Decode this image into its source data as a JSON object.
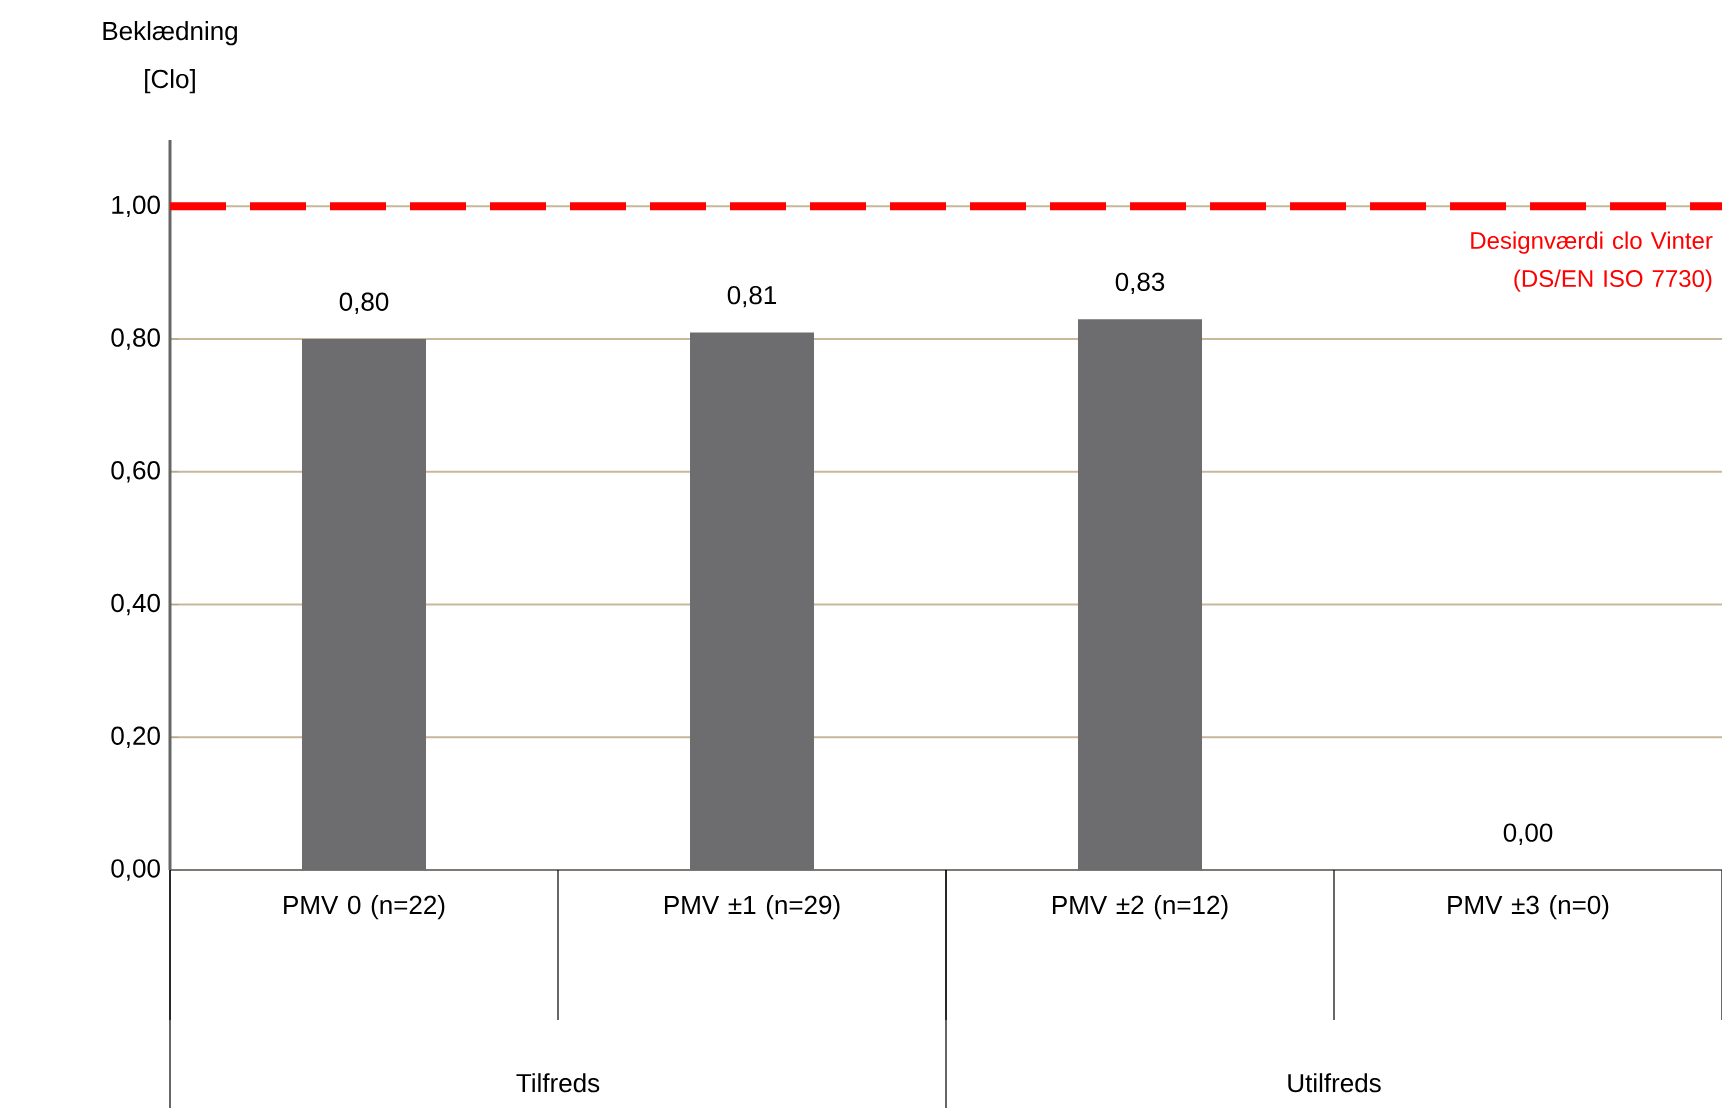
{
  "chart_data": {
    "type": "bar",
    "ylabel": "Beklædning [Clo]",
    "categories": [
      "PMV 0 (n=22)",
      "PMV ±1 (n=29)",
      "PMV ±2 (n=12)",
      "PMV ±3 (n=0)"
    ],
    "values": [
      0.8,
      0.81,
      0.83,
      0.0
    ],
    "color": "#6d6d70",
    "value_labels": [
      "0,80",
      "0,81",
      "0,83",
      "0,00"
    ],
    "ylim": [
      0,
      1.1
    ],
    "yticks": [
      {
        "value": 0,
        "label": "0,00"
      },
      {
        "value": 0.2,
        "label": "0,20"
      },
      {
        "value": 0.4,
        "label": "0,40"
      },
      {
        "value": 0.6,
        "label": "0,60"
      },
      {
        "value": 0.8,
        "label": "0,80"
      },
      {
        "value": 1.0,
        "label": "1,00"
      }
    ],
    "grid": "y",
    "ref_lines": [
      {
        "axis": "y",
        "value": 1.0,
        "label": "Designværdi clo Vinter (DS/EN ISO 7730)",
        "color": "#ff0000",
        "line_style": "dashed"
      }
    ],
    "annotations": [
      "Tilfreds",
      "Utilfreds"
    ]
  }
}
